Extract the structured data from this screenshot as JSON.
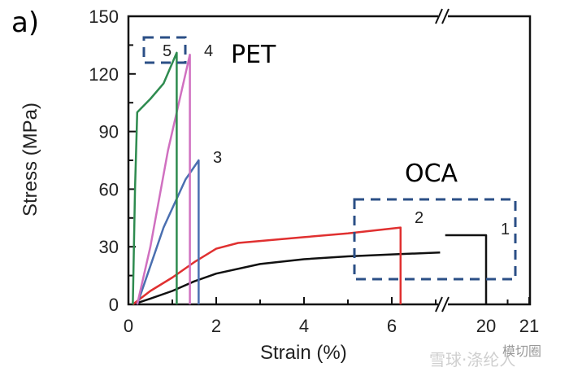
{
  "chart_data": {
    "type": "line",
    "panel_label": "a)",
    "xlabel": "Strain (%)",
    "ylabel": "Stress (MPa)",
    "xlim": [
      0,
      21
    ],
    "x_axis_break": [
      7.2,
      19.0
    ],
    "ylim": [
      0,
      150
    ],
    "x_ticks": [
      "0",
      "2",
      "4",
      "6",
      "20",
      "21"
    ],
    "y_ticks": [
      "0",
      "30",
      "60",
      "90",
      "120",
      "150"
    ],
    "grid": false,
    "annotations": {
      "group_pet": "PET",
      "group_oca": "OCA"
    },
    "series": [
      {
        "name": "1",
        "color": "#111111",
        "x": [
          0.1,
          0.5,
          1,
          1.5,
          2,
          3,
          4,
          5,
          6,
          7.1,
          19.05,
          20.0,
          20.0
        ],
        "y": [
          0,
          3,
          7,
          12,
          16,
          21,
          23.5,
          25,
          26,
          27,
          36,
          36,
          0
        ]
      },
      {
        "name": "2",
        "color": "#e03030",
        "x": [
          0.1,
          0.5,
          1,
          1.5,
          2,
          2.5,
          3,
          4,
          5,
          6.2,
          6.2
        ],
        "y": [
          0,
          7,
          14,
          22,
          29,
          32,
          33,
          35,
          37,
          40,
          0
        ]
      },
      {
        "name": "3",
        "color": "#4a6fb0",
        "x": [
          0.2,
          0.5,
          0.8,
          1.0,
          1.3,
          1.6,
          1.6
        ],
        "y": [
          0,
          20,
          40,
          50,
          65,
          75,
          0
        ]
      },
      {
        "name": "4",
        "color": "#d070c0",
        "x": [
          0.2,
          0.5,
          0.9,
          1.2,
          1.4,
          1.4
        ],
        "y": [
          0,
          30,
          80,
          110,
          130,
          0
        ]
      },
      {
        "name": "5",
        "color": "#2e8b4f",
        "x": [
          0.1,
          0.15,
          0.2,
          0.5,
          0.8,
          1.1,
          1.1
        ],
        "y": [
          0,
          60,
          100,
          107,
          115,
          131,
          0
        ]
      }
    ]
  },
  "watermark": {
    "left": "雪球·涤纶人",
    "right": "模切圈"
  }
}
